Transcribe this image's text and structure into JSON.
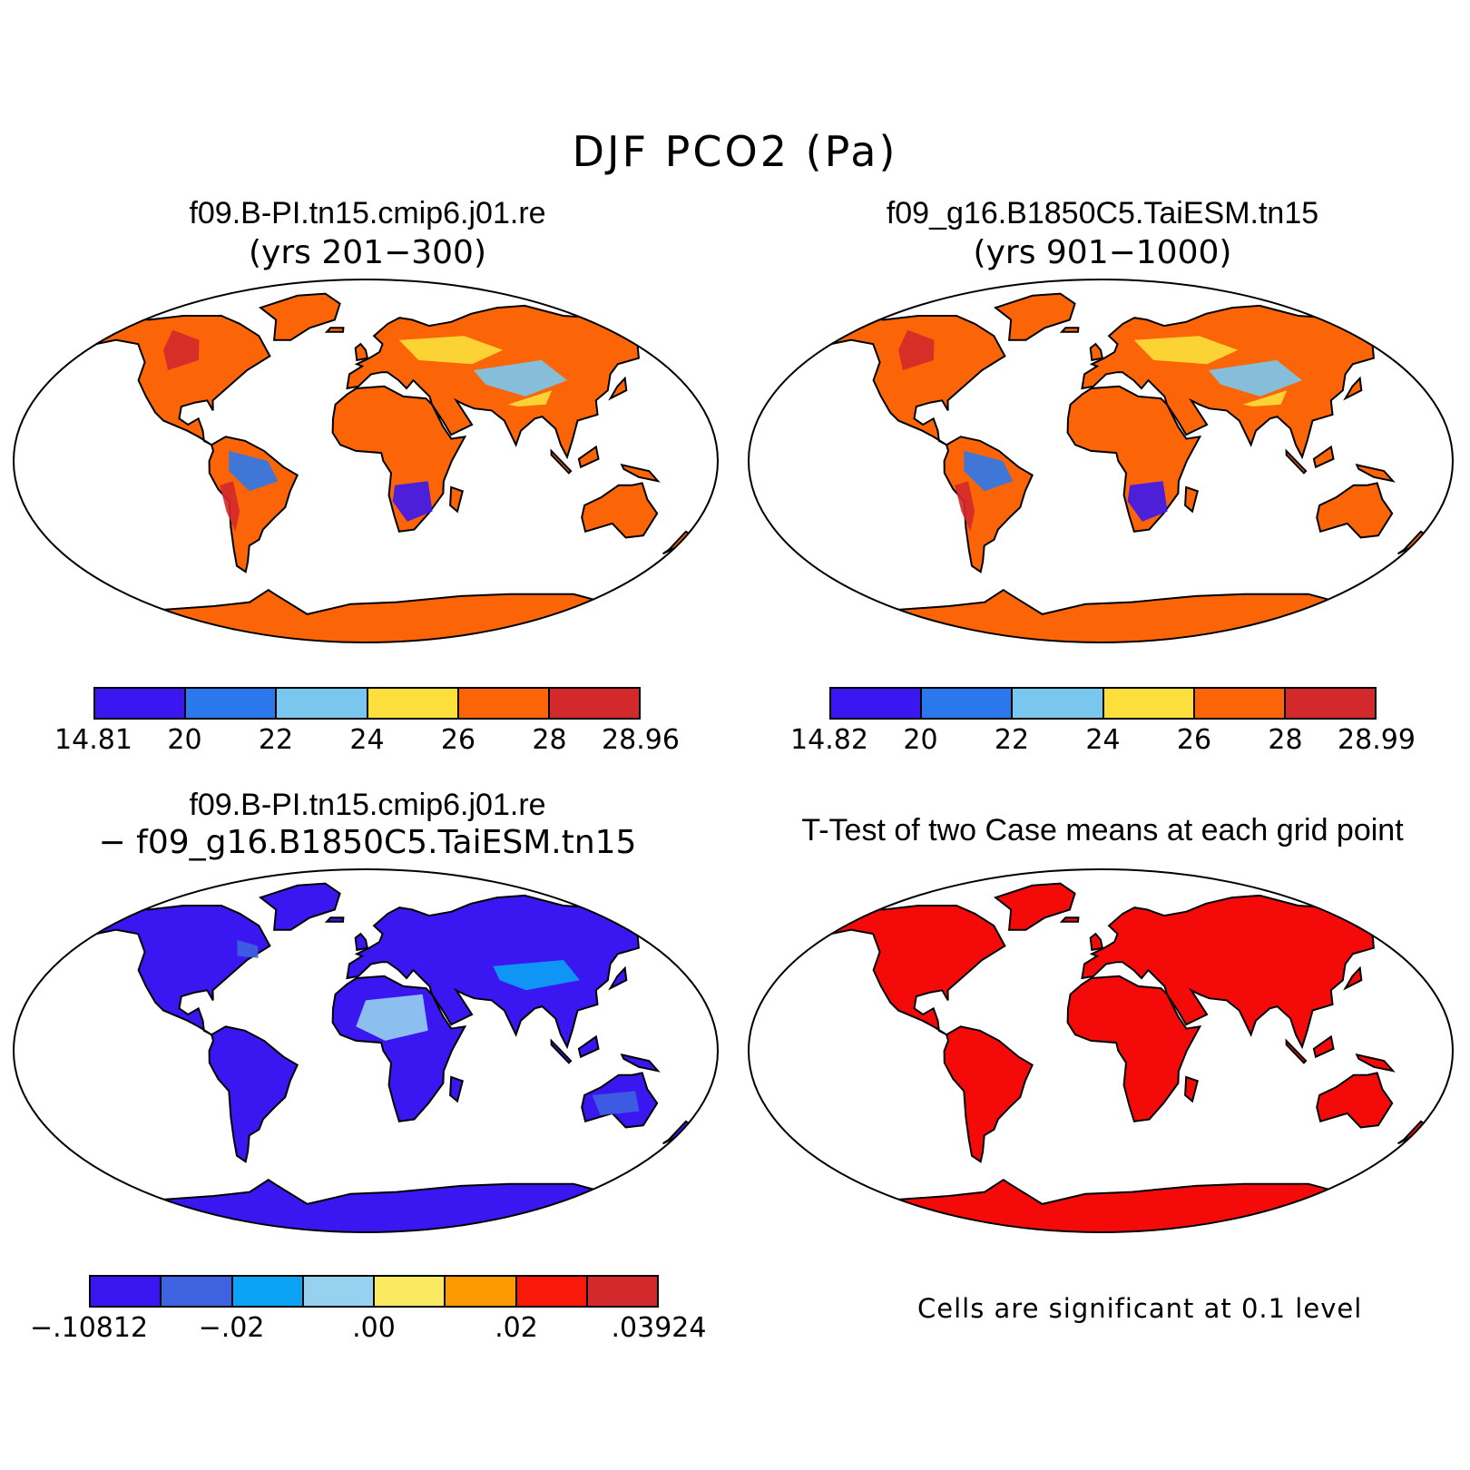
{
  "title": "DJF PCO2 (Pa)",
  "panels": [
    {
      "title": "f09.B-PI.tn15.cmip6.j01.re",
      "subtitle": "(yrs 201−300)",
      "legend": {
        "colors": [
          "#3a17f0",
          "#2b78ec",
          "#79c6ef",
          "#fcdf3a",
          "#fb6508",
          "#d3282c"
        ],
        "labels": [
          "14.81",
          "20",
          "22",
          "24",
          "26",
          "28",
          "28.96"
        ]
      },
      "land_color": "#fb6508",
      "accent_colors": [
        "#d3282c",
        "#fcdf3a",
        "#79c6ef",
        "#2b78ec",
        "#3a17f0"
      ]
    },
    {
      "title": "f09_g16.B1850C5.TaiESM.tn15",
      "subtitle": "(yrs 901−1000)",
      "legend": {
        "colors": [
          "#3a17f0",
          "#2b78ec",
          "#79c6ef",
          "#fcdf3a",
          "#fb6508",
          "#d3282c"
        ],
        "labels": [
          "14.82",
          "20",
          "22",
          "24",
          "26",
          "28",
          "28.99"
        ]
      },
      "land_color": "#fb6508",
      "accent_colors": [
        "#d3282c",
        "#fcdf3a",
        "#79c6ef",
        "#2b78ec",
        "#3a17f0"
      ]
    },
    {
      "title": "f09.B-PI.tn15.cmip6.j01.re",
      "subtitle": "− f09_g16.B1850C5.TaiESM.tn15",
      "legend": {
        "colors": [
          "#3a17f0",
          "#3e62e0",
          "#0aa3f5",
          "#96d2ef",
          "#fbe961",
          "#fb9a00",
          "#f9190a",
          "#d3282c"
        ],
        "labels": [
          "−.10812",
          "−.02",
          ".00",
          ".02",
          ".03924"
        ]
      },
      "land_color": "#3a17f0",
      "accent_colors": [
        "#3e62e0",
        "#0aa3f5",
        "#96d2ef"
      ]
    },
    {
      "title": "T-Test of two Case means at each grid point",
      "note": "Cells are significant at 0.1 level",
      "land_color": "#f50a0a"
    }
  ]
}
